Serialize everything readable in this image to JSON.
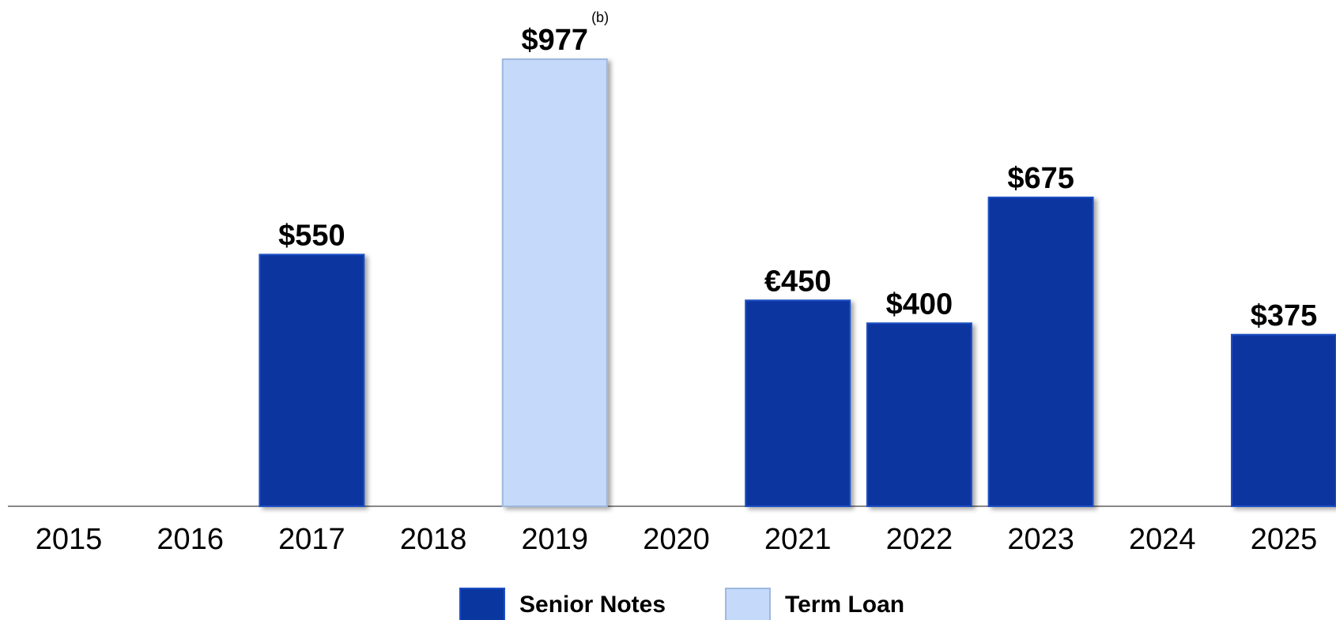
{
  "chart_data": {
    "type": "bar",
    "categories": [
      "2015",
      "2016",
      "2017",
      "2018",
      "2019",
      "2020",
      "2021",
      "2022",
      "2023",
      "2024",
      "2025"
    ],
    "series": [
      {
        "name": "Senior Notes",
        "color": "#0a36a0",
        "values": [
          null,
          null,
          550,
          null,
          null,
          null,
          450,
          400,
          675,
          null,
          375
        ],
        "value_labels": [
          null,
          null,
          "$550",
          null,
          null,
          null,
          "€450",
          "$400",
          "$675",
          null,
          "$375"
        ]
      },
      {
        "name": "Term Loan",
        "color": "#c5dafa",
        "values": [
          null,
          null,
          null,
          null,
          977,
          null,
          null,
          null,
          null,
          null,
          null
        ],
        "value_labels": [
          null,
          null,
          null,
          null,
          "$977",
          null,
          null,
          null,
          null,
          null,
          null
        ]
      }
    ],
    "annotation": "(b)"
  }
}
